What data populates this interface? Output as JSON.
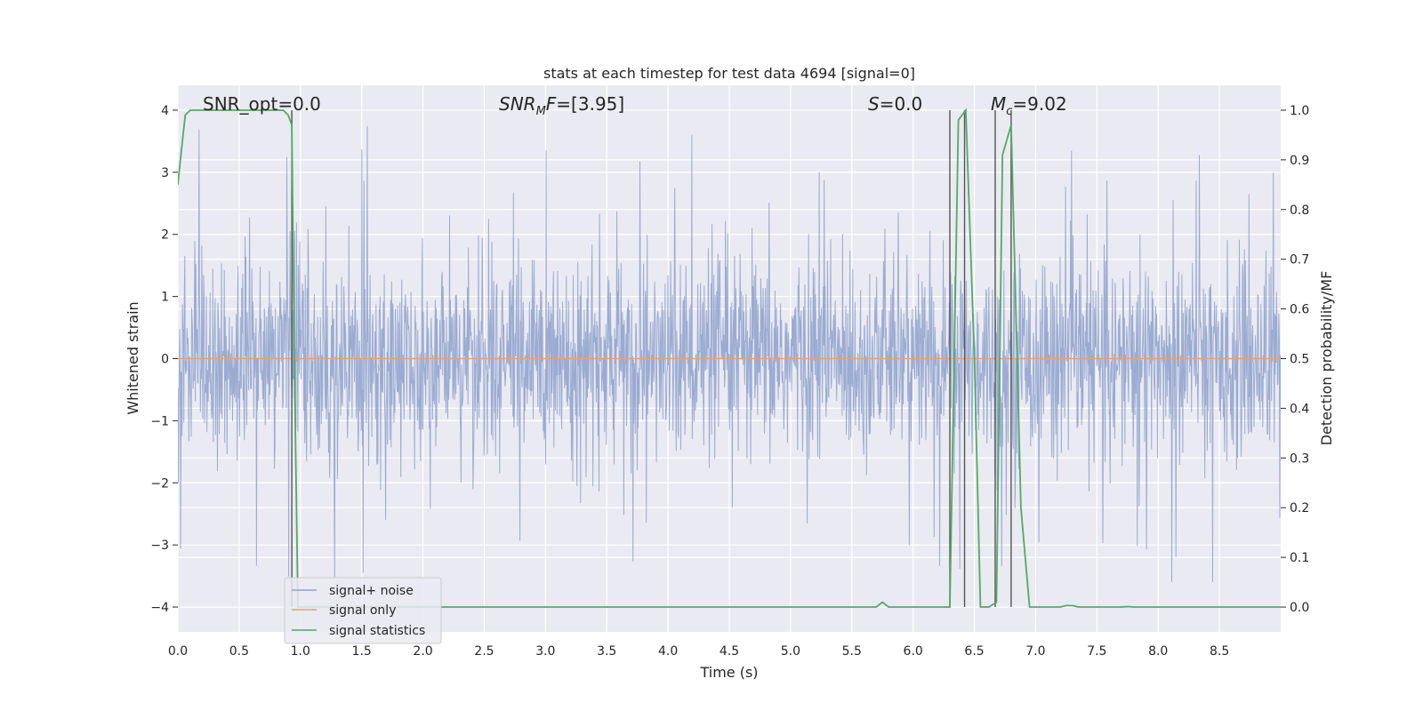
{
  "chart_data": {
    "type": "line",
    "title": "stats at each timestep for test data 4694 [signal=0]",
    "xlabel": "Time (s)",
    "ylabel": "Whitened strain",
    "y2label": "Detection probability/MF",
    "xlim": [
      0.0,
      9.0
    ],
    "ylim": [
      -4.4,
      4.4
    ],
    "y2lim": [
      -0.05,
      1.05
    ],
    "xticks": [
      "0.0",
      "0.5",
      "1.0",
      "1.5",
      "2.0",
      "2.5",
      "3.0",
      "3.5",
      "4.0",
      "4.5",
      "5.0",
      "5.5",
      "6.0",
      "6.5",
      "7.0",
      "7.5",
      "8.0",
      "8.5"
    ],
    "xtick_values": [
      0.0,
      0.5,
      1.0,
      1.5,
      2.0,
      2.5,
      3.0,
      3.5,
      4.0,
      4.5,
      5.0,
      5.5,
      6.0,
      6.5,
      7.0,
      7.5,
      8.0,
      8.5
    ],
    "yticks": [
      "−4",
      "−3",
      "−2",
      "−1",
      "0",
      "1",
      "2",
      "3",
      "4"
    ],
    "ytick_values": [
      -4,
      -3,
      -2,
      -1,
      0,
      1,
      2,
      3,
      4
    ],
    "y2ticks": [
      "0.0",
      "0.1",
      "0.2",
      "0.3",
      "0.4",
      "0.5",
      "0.6",
      "0.7",
      "0.8",
      "0.9",
      "1.0"
    ],
    "y2tick_values": [
      0.0,
      0.1,
      0.2,
      0.3,
      0.4,
      0.5,
      0.6,
      0.7,
      0.8,
      0.9,
      1.0
    ],
    "grid": true,
    "legend_position": "lower-left",
    "annotations": [
      {
        "text": "SNR_opt=0.0",
        "x": 0.2
      },
      {
        "text": "SNR_MF=[3.95]",
        "x": 2.6
      },
      {
        "text": "S=0.0",
        "x": 5.6
      },
      {
        "text": "M_c=9.02",
        "x": 6.6
      }
    ],
    "vertical_lines": [
      0.93,
      6.3,
      6.42,
      6.67,
      6.8
    ],
    "series": [
      {
        "name": "signal+ noise",
        "color": "#8da0cb",
        "kind": "noise",
        "envelope_std": 0.8,
        "peak_max": 4.0,
        "peak_min": -3.6
      },
      {
        "name": "signal only",
        "color": "#e5a17a",
        "x": [
          0.0,
          9.0
        ],
        "values": [
          0.0,
          0.0
        ]
      },
      {
        "name": "signal statistics",
        "color": "#55a868",
        "axis": "right",
        "x": [
          0.0,
          0.02,
          0.06,
          0.1,
          0.2,
          0.3,
          0.4,
          0.5,
          0.6,
          0.7,
          0.8,
          0.86,
          0.9,
          0.93,
          0.95,
          0.98,
          1.0,
          1.5,
          2.0,
          2.5,
          3.0,
          3.5,
          4.0,
          4.5,
          5.0,
          5.5,
          5.7,
          5.75,
          5.8,
          6.0,
          6.2,
          6.3,
          6.37,
          6.43,
          6.5,
          6.55,
          6.62,
          6.68,
          6.73,
          6.8,
          6.88,
          6.95,
          7.0,
          7.2,
          7.25,
          7.3,
          7.35,
          7.5,
          7.7,
          7.75,
          7.8,
          8.0,
          8.5,
          9.0
        ],
        "values": [
          0.85,
          0.9,
          0.99,
          1.0,
          1.0,
          1.0,
          1.0,
          1.0,
          1.0,
          1.0,
          1.0,
          1.0,
          0.99,
          0.97,
          0.5,
          0.0,
          0.0,
          0.0,
          0.0,
          0.0,
          0.0,
          0.0,
          0.0,
          0.0,
          0.0,
          0.0,
          0.0,
          0.01,
          0.0,
          0.0,
          0.0,
          0.0,
          0.98,
          1.0,
          0.5,
          0.0,
          0.0,
          0.01,
          0.91,
          0.97,
          0.2,
          0.0,
          0.0,
          0.0,
          0.003,
          0.003,
          0.0,
          0.0,
          0.0,
          0.001,
          0.0,
          0.0,
          0.0,
          0.0
        ]
      }
    ]
  }
}
